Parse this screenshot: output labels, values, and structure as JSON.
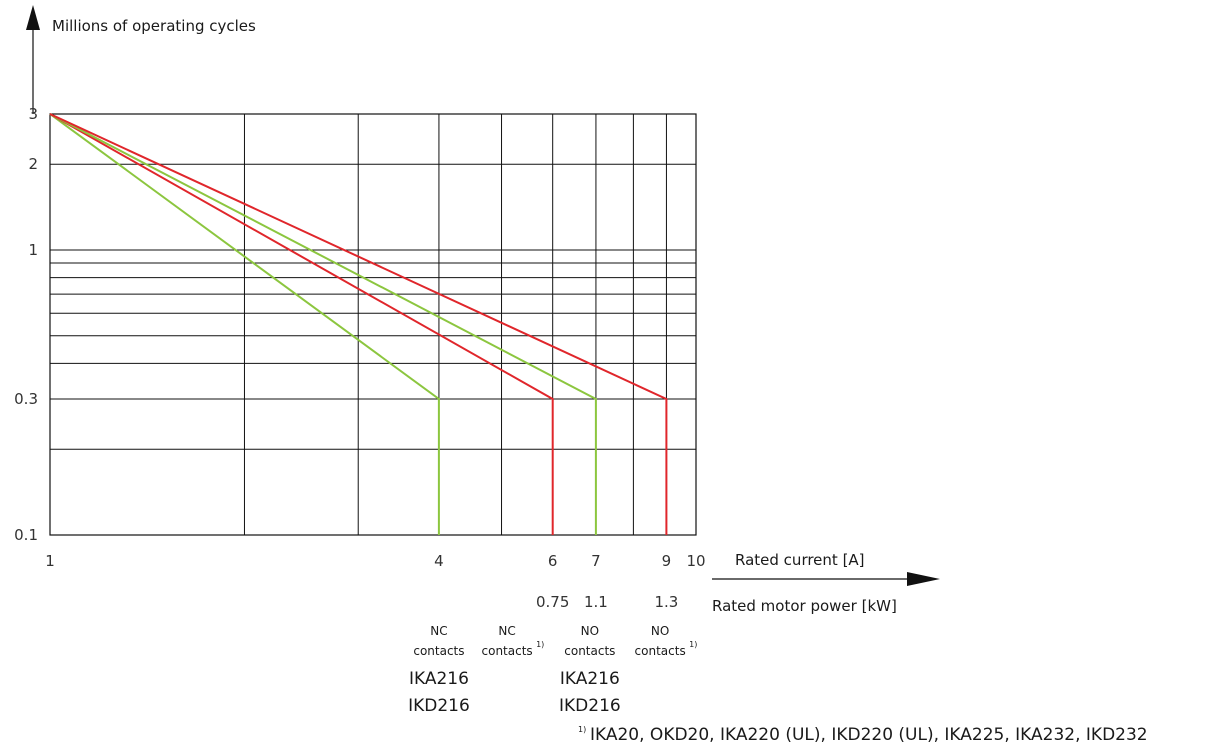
{
  "chart_data": {
    "type": "line",
    "x_scale": "log",
    "y_scale": "log",
    "xlim": [
      1,
      10
    ],
    "ylim": [
      0.1,
      3
    ],
    "grid": true,
    "ylabel": "Millions of operating cycles",
    "xlabel": "Rated current [A]",
    "x2label": "Rated motor power [kW]",
    "y_ticks": [
      {
        "value": 3,
        "label": "3"
      },
      {
        "value": 2,
        "label": "2"
      },
      {
        "value": 1,
        "label": "1"
      },
      {
        "value": 0.3,
        "label": "0.3"
      },
      {
        "value": 0.1,
        "label": "0.1"
      }
    ],
    "x_ticks": [
      {
        "value": 1,
        "label": "1"
      },
      {
        "value": 4,
        "label": "4"
      },
      {
        "value": 6,
        "label": "6"
      },
      {
        "value": 7,
        "label": "7"
      },
      {
        "value": 9,
        "label": "9"
      },
      {
        "value": 10,
        "label": "10"
      }
    ],
    "x_grid": [
      1,
      2,
      3,
      4,
      5,
      6,
      7,
      8,
      9,
      10
    ],
    "y_grid": [
      0.1,
      0.2,
      0.3,
      0.4,
      0.5,
      0.6,
      0.7,
      0.8,
      0.9,
      1,
      2,
      3
    ],
    "power_ticks": [
      {
        "value": 6,
        "label": "0.75"
      },
      {
        "value": 7,
        "label": "1.1"
      },
      {
        "value": 9,
        "label": "1.3"
      }
    ],
    "series": [
      {
        "color": "#8cc63f",
        "x": [
          1,
          4,
          4
        ],
        "y": [
          3,
          0.3,
          0.1
        ]
      },
      {
        "color": "#e0262b",
        "x": [
          1,
          6,
          6
        ],
        "y": [
          3,
          0.3,
          0.1
        ]
      },
      {
        "color": "#8cc63f",
        "x": [
          1,
          7,
          7
        ],
        "y": [
          3,
          0.3,
          0.1
        ]
      },
      {
        "color": "#e0262b",
        "x": [
          1,
          9,
          9
        ],
        "y": [
          3,
          0.3,
          0.1
        ]
      }
    ],
    "contact_labels": [
      {
        "x": 4,
        "line1": "NC",
        "line2": "contacts",
        "note": ""
      },
      {
        "x": 5.1,
        "line1": "NC",
        "line2": "contacts",
        "note": "1)"
      },
      {
        "x": 6.85,
        "line1": "NO",
        "line2": "contacts",
        "note": ""
      },
      {
        "x": 8.8,
        "line1": "NO",
        "line2": "contacts",
        "note": "1)"
      }
    ],
    "product_groups": [
      {
        "x": 4,
        "lines": [
          "IKA216",
          "IKD216"
        ]
      },
      {
        "x": 6.85,
        "lines": [
          "IKA216",
          "IKD216"
        ]
      }
    ],
    "footnote": {
      "marker": "1)",
      "text": "IKA20, OKD20, IKA220 (UL), IKD220 (UL), IKA225, IKA232, IKD232"
    }
  }
}
